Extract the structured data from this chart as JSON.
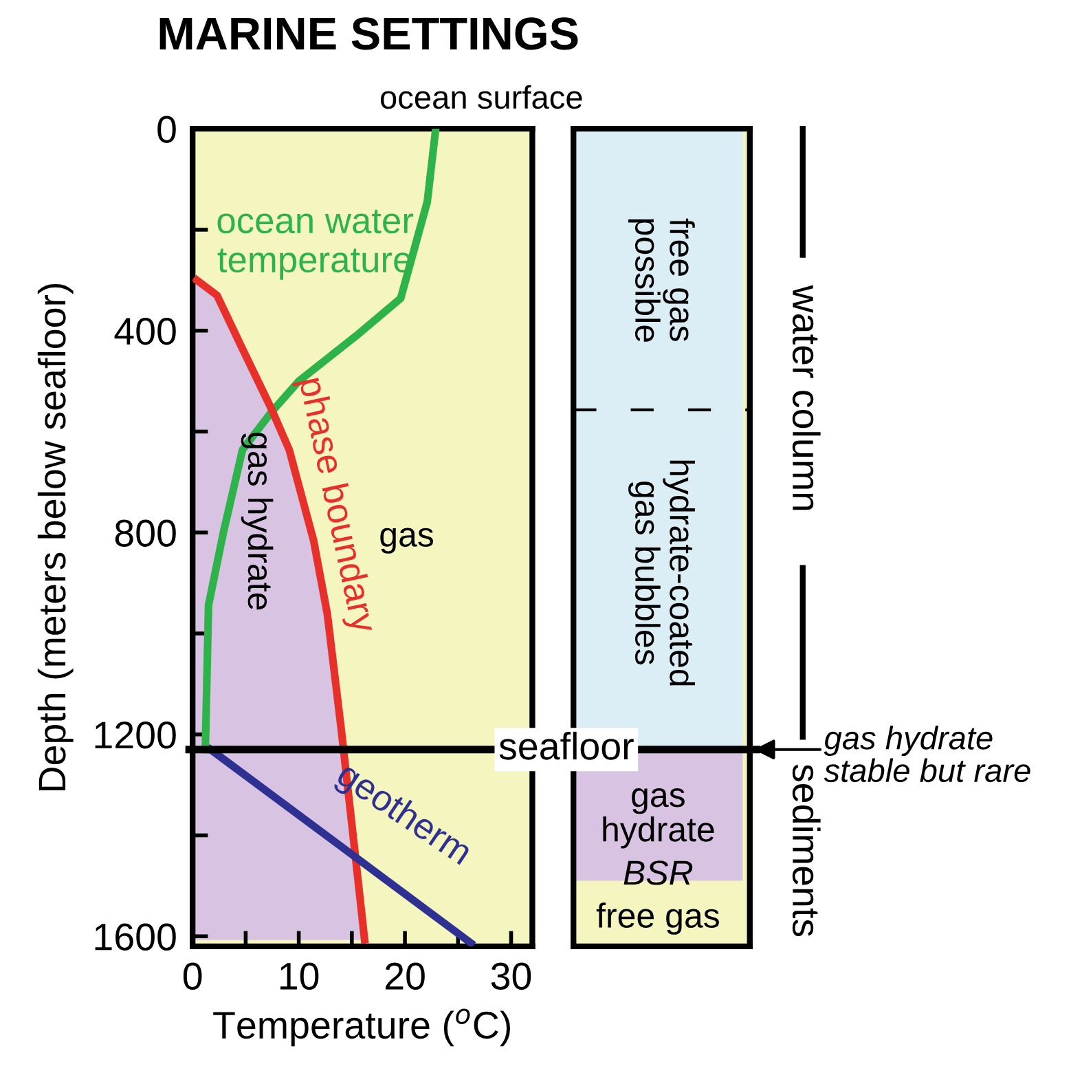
{
  "chart_data": [
    {
      "type": "line",
      "title": "MARINE SETTINGS",
      "xlabel": "Temperature ($^{o}$C)",
      "ylabel": "Depth (meters below seafloor)",
      "xlim": [
        0,
        32
      ],
      "xticks": [
        0,
        {
          "value": 5,
          "label": null
        },
        10,
        {
          "value": 15,
          "label": null
        },
        20,
        {
          "value": 25,
          "label": null
        },
        30
      ],
      "ylim": [
        1620,
        0
      ],
      "yticks": [
        0,
        {
          "value": 200,
          "label": null
        },
        400,
        {
          "value": 600,
          "label": null
        },
        800,
        {
          "value": 1000,
          "label": null
        },
        1200,
        {
          "value": 1400,
          "label": null
        },
        1600
      ],
      "grid": false,
      "legend": false,
      "marker": "none",
      "line_style": "solid",
      "series": [
        {
          "name": "ocean water\ntemperature",
          "color": "#2db34a",
          "x": [
            22.9,
            22.1,
            19.6,
            15.6,
            10.0,
            7.4,
            4.7,
            2.9,
            1.5,
            1.2
          ],
          "values": [
            0,
            145,
            336,
            407,
            500,
            562,
            636,
            800,
            944,
            1230
          ]
        },
        {
          "name": "phase boundary",
          "color": "#e8302a",
          "x": [
            0.4,
            2.3,
            4.9,
            7.4,
            9.1,
            11.4,
            12.7,
            14.0,
            15.3,
            16.2
          ],
          "values": [
            300,
            330,
            445,
            554,
            636,
            816,
            963,
            1190,
            1435,
            1607
          ]
        },
        {
          "name": "geotherm",
          "color": "#2e3192",
          "x": [
            1.7,
            26.2
          ],
          "values": [
            1230,
            1613
          ]
        }
      ],
      "ref_lines": [
        {
          "axis": "y",
          "value": 1230,
          "label": "seafloor",
          "color": "#000000"
        }
      ],
      "annotations": [
        "ocean surface",
        "gas hydrate",
        "gas"
      ]
    },
    {
      "type": "other",
      "annotations": [
        "free gas\npossible",
        "hydrate-coated\ngas bubbles",
        "gas\nhydrate",
        "BSR",
        "free gas",
        "water column",
        "sediments",
        "gas hydrate\nstable but rare"
      ]
    }
  ]
}
